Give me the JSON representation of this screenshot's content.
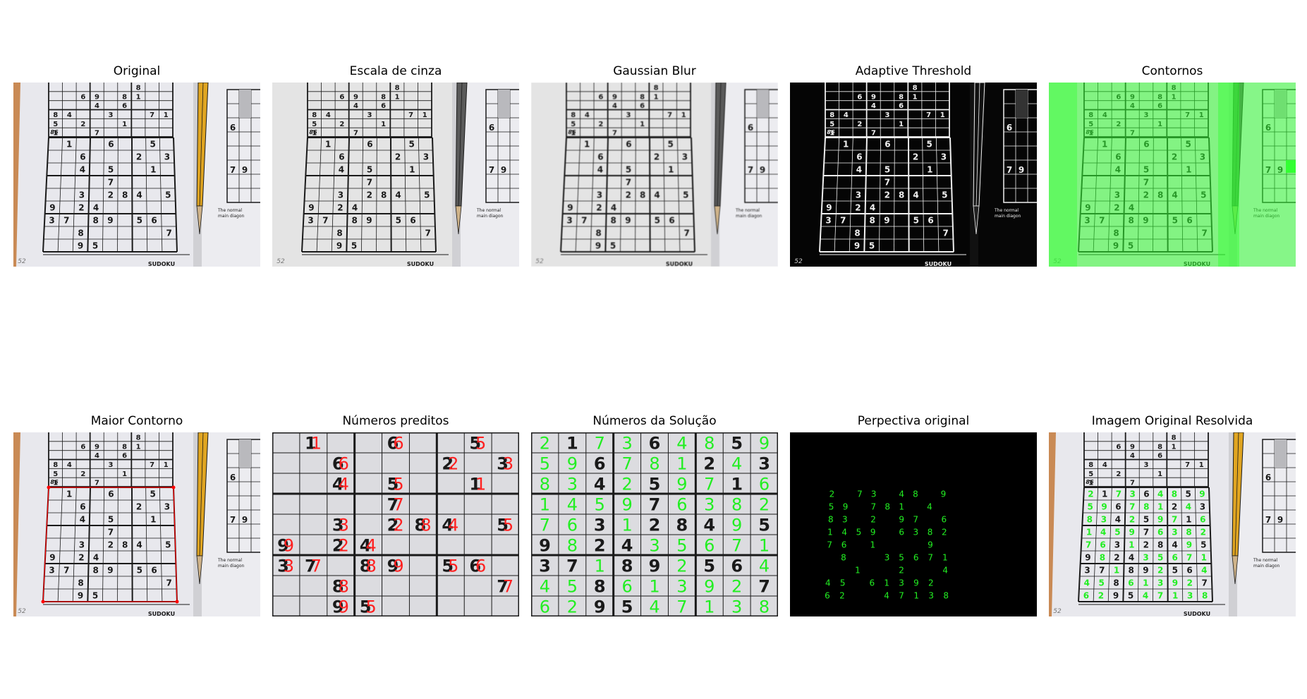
{
  "panels": [
    {
      "title": "Original"
    },
    {
      "title": "Escala de cinza"
    },
    {
      "title": "Gaussian Blur"
    },
    {
      "title": "Adaptive Threshold"
    },
    {
      "title": "Contornos"
    },
    {
      "title": "Maior Contorno"
    },
    {
      "title": "Números preditos"
    },
    {
      "title": "Números da Solução"
    },
    {
      "title": "Perpectiva original"
    },
    {
      "title": "Imagem Original Resolvida"
    }
  ],
  "photo": {
    "top_rows": [
      [
        "",
        "",
        "",
        "",
        "",
        "",
        "8",
        "",
        ""
      ],
      [
        "",
        "",
        "6",
        "9",
        "",
        "8",
        "1",
        "",
        ""
      ],
      [
        "",
        "",
        "",
        "4",
        "",
        "6",
        "",
        "",
        ""
      ],
      [
        "8",
        "4",
        "",
        "",
        "3",
        "",
        "",
        "7",
        "1"
      ],
      [
        "5",
        "",
        "2",
        "",
        "",
        "1",
        "",
        "",
        ""
      ],
      [
        "1",
        "",
        "",
        "7",
        "",
        "",
        "",
        "",
        ""
      ]
    ],
    "puzzle_number": "86",
    "page_number": "52",
    "footer": "SUDOKU",
    "side_cells": [
      "6",
      "7",
      "9"
    ],
    "side_text": [
      "The normal",
      "main diagon"
    ]
  },
  "puzzle": [
    [
      "",
      "1",
      "",
      "",
      "6",
      "",
      "",
      "5",
      ""
    ],
    [
      "",
      "",
      "6",
      "",
      "",
      "",
      "2",
      "",
      "3"
    ],
    [
      "",
      "",
      "4",
      "",
      "5",
      "",
      "",
      "1",
      ""
    ],
    [
      "",
      "",
      "",
      "",
      "7",
      "",
      "",
      "",
      ""
    ],
    [
      "",
      "",
      "3",
      "",
      "2",
      "8",
      "4",
      "",
      "5"
    ],
    [
      "9",
      "",
      "2",
      "4",
      "",
      "",
      "",
      "",
      ""
    ],
    [
      "3",
      "7",
      "",
      "8",
      "9",
      "",
      "5",
      "6",
      ""
    ],
    [
      "",
      "",
      "8",
      "",
      "",
      "",
      "",
      "",
      "7"
    ],
    [
      "",
      "",
      "9",
      "5",
      "",
      "",
      "",
      "",
      ""
    ]
  ],
  "solution": [
    [
      "2",
      "1",
      "7",
      "3",
      "6",
      "4",
      "8",
      "5",
      "9"
    ],
    [
      "5",
      "9",
      "6",
      "7",
      "8",
      "1",
      "2",
      "4",
      "3"
    ],
    [
      "8",
      "3",
      "4",
      "2",
      "5",
      "9",
      "7",
      "1",
      "6"
    ],
    [
      "1",
      "4",
      "5",
      "9",
      "7",
      "6",
      "3",
      "8",
      "2"
    ],
    [
      "7",
      "6",
      "3",
      "1",
      "2",
      "8",
      "4",
      "9",
      "5"
    ],
    [
      "9",
      "8",
      "2",
      "4",
      "3",
      "5",
      "6",
      "7",
      "1"
    ],
    [
      "3",
      "7",
      "1",
      "8",
      "9",
      "2",
      "5",
      "6",
      "4"
    ],
    [
      "4",
      "5",
      "8",
      "6",
      "1",
      "3",
      "9",
      "2",
      "7"
    ],
    [
      "6",
      "2",
      "9",
      "5",
      "4",
      "7",
      "1",
      "3",
      "8"
    ]
  ],
  "colors": {
    "prediction": "#ff2020",
    "solution": "#22ee22",
    "contour": "#33ff33",
    "paper": "#e9e9ec",
    "ink": "#1a1a1a"
  }
}
